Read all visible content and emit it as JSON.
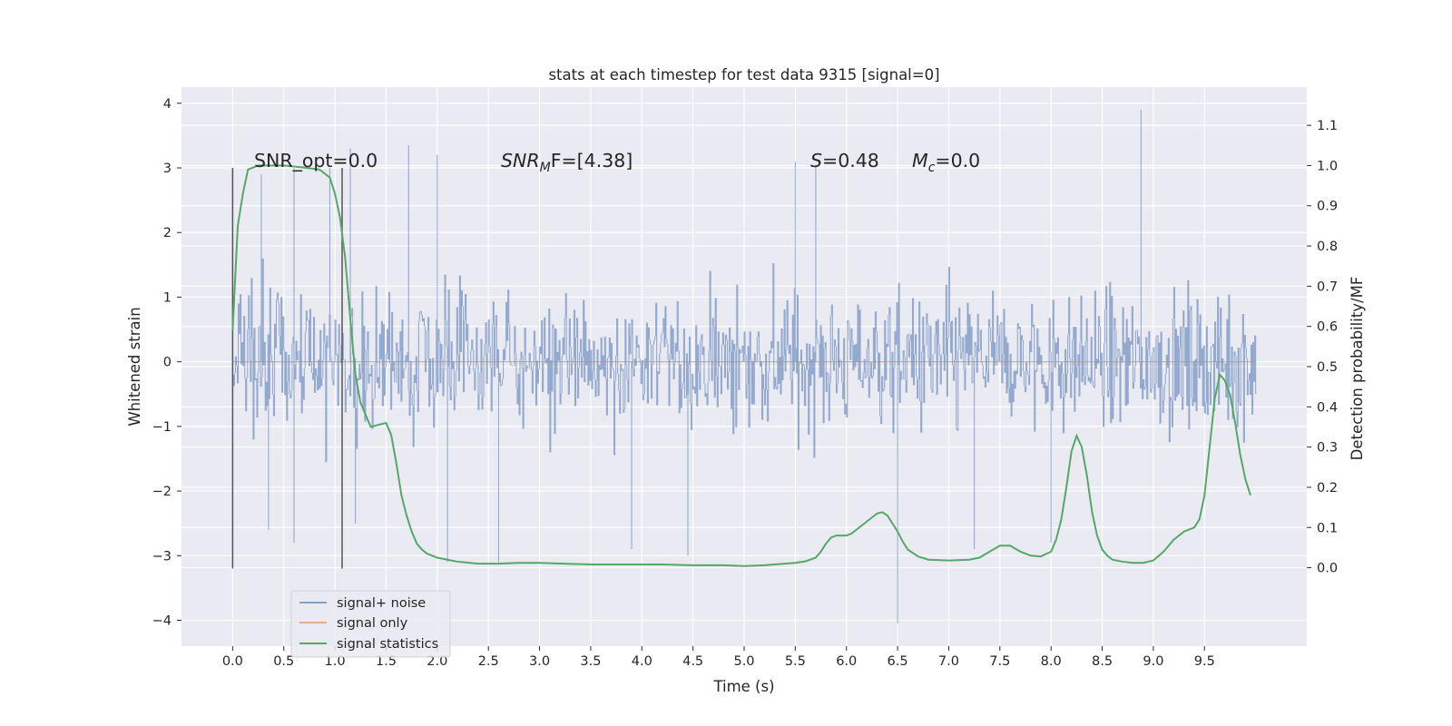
{
  "chart_data": {
    "type": "line",
    "title": "stats at each timestep for test data 9315 [signal=0]",
    "xlabel": "Time (s)",
    "ylabel_left": "Whitened strain",
    "ylabel_right": "Detection probability/MF",
    "xlim": [
      -0.5,
      10.5
    ],
    "ylim_left": [
      -4.4,
      4.25
    ],
    "ylim_right": [
      -0.195,
      1.195
    ],
    "xticks": [
      "0.0",
      "0.5",
      "1.0",
      "1.5",
      "2.0",
      "2.5",
      "3.0",
      "3.5",
      "4.0",
      "4.5",
      "5.0",
      "5.5",
      "6.0",
      "6.5",
      "7.0",
      "7.5",
      "8.0",
      "8.5",
      "9.0",
      "9.5"
    ],
    "yticks_left": [
      "4",
      "3",
      "2",
      "1",
      "0",
      "−1",
      "−2",
      "−3",
      "−4"
    ],
    "yticks_right": [
      "1.1",
      "1.0",
      "0.9",
      "0.8",
      "0.7",
      "0.6",
      "0.5",
      "0.4",
      "0.3",
      "0.2",
      "0.1",
      "0.0"
    ],
    "grid": true,
    "legend_position": "lower-left",
    "annotations": {
      "snr_opt": "SNR_opt=0.0",
      "snr_mf_symbol": "SNR",
      "snr_mf_sub": "M",
      "snr_mf_tail": "F=[4.38]",
      "s_symbol": "S",
      "s_tail": "=0.48",
      "mc_symbol": "M",
      "mc_sub": "c",
      "mc_tail": "=0.0"
    },
    "vertical_markers_x": [
      0.0,
      1.07
    ],
    "series": [
      {
        "name": "signal+ noise",
        "color": "#4c72b0",
        "note_axis": "left",
        "x_range": [
          0.0,
          10.0
        ],
        "envelope_typical": [
          -1.5,
          1.5
        ],
        "peaks": [
          [
            0.0,
            2.7
          ],
          [
            0.28,
            2.9
          ],
          [
            0.6,
            3.0
          ],
          [
            0.95,
            3.0
          ],
          [
            1.15,
            3.3
          ],
          [
            1.72,
            3.35
          ],
          [
            2.0,
            3.2
          ],
          [
            5.5,
            3.1
          ],
          [
            5.7,
            3.05
          ],
          [
            8.88,
            3.9
          ]
        ],
        "troughs": [
          [
            0.35,
            -2.6
          ],
          [
            0.6,
            -2.8
          ],
          [
            1.2,
            -2.5
          ],
          [
            2.1,
            -3.1
          ],
          [
            2.6,
            -3.1
          ],
          [
            3.9,
            -2.9
          ],
          [
            4.45,
            -3.0
          ],
          [
            6.5,
            -4.05
          ],
          [
            7.25,
            -2.9
          ],
          [
            8.0,
            -2.8
          ]
        ]
      },
      {
        "name": "signal only",
        "color": "#dd8452",
        "note_axis": "left",
        "x": [
          0.0,
          10.0
        ],
        "y": [
          0.0,
          0.0
        ]
      },
      {
        "name": "signal statistics",
        "color": "#55a868",
        "note_axis": "right",
        "x": [
          0.0,
          0.05,
          0.1,
          0.15,
          0.25,
          0.35,
          0.5,
          0.7,
          0.85,
          0.95,
          1.0,
          1.05,
          1.1,
          1.15,
          1.2,
          1.25,
          1.3,
          1.35,
          1.42,
          1.5,
          1.55,
          1.6,
          1.65,
          1.7,
          1.75,
          1.8,
          1.85,
          1.9,
          2.0,
          2.1,
          2.2,
          2.4,
          2.6,
          2.8,
          3.0,
          3.5,
          4.0,
          4.2,
          4.5,
          4.8,
          5.0,
          5.2,
          5.4,
          5.5,
          5.6,
          5.7,
          5.75,
          5.8,
          5.85,
          5.9,
          6.0,
          6.05,
          6.1,
          6.2,
          6.3,
          6.35,
          6.4,
          6.5,
          6.55,
          6.6,
          6.7,
          6.8,
          7.0,
          7.2,
          7.3,
          7.4,
          7.5,
          7.6,
          7.7,
          7.8,
          7.9,
          8.0,
          8.05,
          8.1,
          8.15,
          8.2,
          8.25,
          8.3,
          8.35,
          8.4,
          8.45,
          8.5,
          8.55,
          8.6,
          8.7,
          8.8,
          8.9,
          9.0,
          9.1,
          9.2,
          9.3,
          9.35,
          9.4,
          9.45,
          9.5,
          9.55,
          9.6,
          9.65,
          9.7,
          9.75,
          9.8,
          9.85,
          9.9,
          9.95
        ],
        "y": [
          0.59,
          0.85,
          0.93,
          0.99,
          1.0,
          1.0,
          1.0,
          0.995,
          0.99,
          0.97,
          0.93,
          0.87,
          0.77,
          0.62,
          0.48,
          0.41,
          0.38,
          0.35,
          0.355,
          0.36,
          0.33,
          0.26,
          0.18,
          0.13,
          0.09,
          0.06,
          0.045,
          0.035,
          0.025,
          0.02,
          0.015,
          0.01,
          0.01,
          0.012,
          0.012,
          0.008,
          0.008,
          0.008,
          0.006,
          0.006,
          0.004,
          0.006,
          0.01,
          0.012,
          0.016,
          0.025,
          0.04,
          0.06,
          0.075,
          0.08,
          0.08,
          0.085,
          0.095,
          0.115,
          0.135,
          0.138,
          0.13,
          0.09,
          0.065,
          0.045,
          0.028,
          0.02,
          0.018,
          0.02,
          0.025,
          0.04,
          0.055,
          0.055,
          0.04,
          0.03,
          0.028,
          0.04,
          0.07,
          0.12,
          0.2,
          0.29,
          0.328,
          0.3,
          0.23,
          0.14,
          0.08,
          0.045,
          0.03,
          0.02,
          0.015,
          0.012,
          0.012,
          0.018,
          0.04,
          0.07,
          0.09,
          0.095,
          0.1,
          0.12,
          0.18,
          0.3,
          0.42,
          0.48,
          0.465,
          0.43,
          0.36,
          0.28,
          0.22,
          0.18
        ]
      }
    ]
  }
}
